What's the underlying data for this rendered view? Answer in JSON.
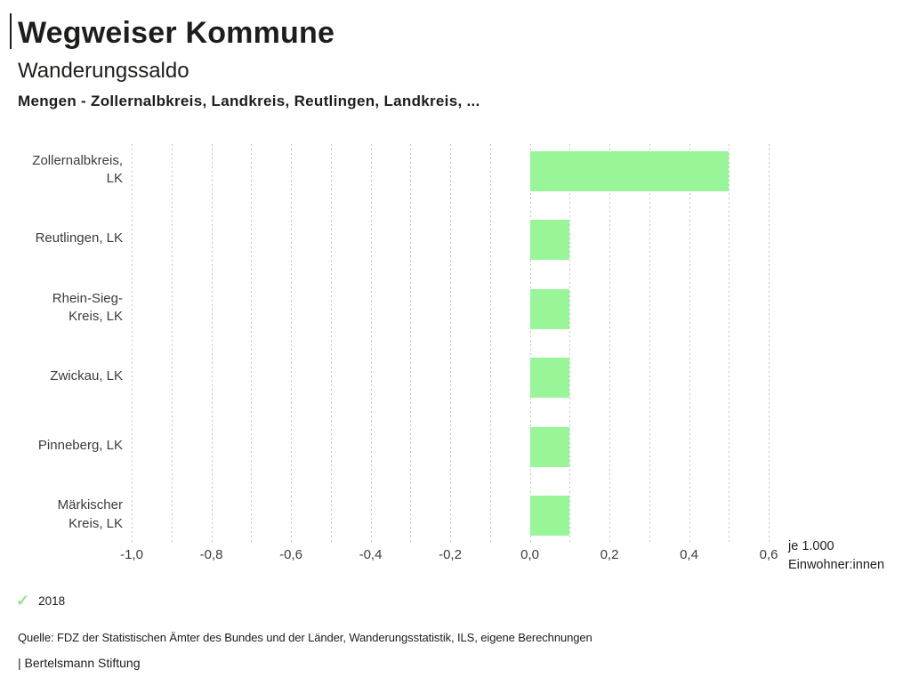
{
  "header": {
    "title": "Wegweiser Kommune",
    "subtitle": "Wanderungssaldo",
    "context": "Mengen - Zollernalbkreis, Landkreis, Reutlingen, Landkreis, ..."
  },
  "chart_data": {
    "type": "bar",
    "orientation": "horizontal",
    "title": "Wanderungssaldo",
    "subtitle": "Mengen - Zollernalbkreis, Landkreis, Reutlingen, Landkreis, ...",
    "categories": [
      "Zollernalbkreis, LK",
      "Reutlingen, LK",
      "Rhein-Sieg-Kreis, LK",
      "Zwickau, LK",
      "Pinneberg, LK",
      "Märkischer Kreis, LK"
    ],
    "category_label_lines": [
      [
        "Zollernalbkreis,",
        "LK"
      ],
      [
        "Reutlingen, LK"
      ],
      [
        "Rhein-Sieg-",
        "Kreis, LK"
      ],
      [
        "Zwickau, LK"
      ],
      [
        "Pinneberg, LK"
      ],
      [
        "Märkischer",
        "Kreis, LK"
      ]
    ],
    "series": [
      {
        "name": "2018",
        "values": [
          0.5,
          0.1,
          0.1,
          0.1,
          0.1,
          0.1
        ]
      }
    ],
    "xlabel": "je 1.000 Einwohner:innen",
    "xlabel_lines": [
      "je 1.000",
      "Einwohner:innen"
    ],
    "xlim": [
      -1.0,
      0.6
    ],
    "x_minor_step": 0.1,
    "x_major_step": 0.2,
    "x_tick_labels": [
      "-1,0",
      "-0,8",
      "-0,6",
      "-0,4",
      "-0,2",
      "0,0",
      "0,2",
      "0,4",
      "0,6"
    ],
    "grid": "dotted-vertical",
    "legend_position": "bottom-left",
    "bar_color": "#98f598",
    "legend": {
      "marker": "check-icon",
      "label": "2018",
      "color": "#8fe78f"
    }
  },
  "footer": {
    "source": "Quelle: FDZ der Statistischen Ämter des Bundes und der Länder, Wanderungsstatistik, ILS, eigene Berechnungen",
    "branding": "| Bertelsmann Stiftung"
  }
}
